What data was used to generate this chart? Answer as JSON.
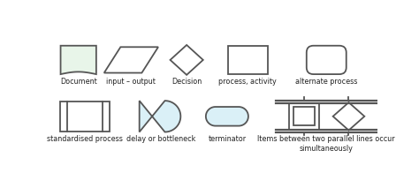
{
  "bg_color": "#ffffff",
  "outline_color": "#555555",
  "doc_fill": "#e8f5e9",
  "light_blue_fill": "#daf0f7",
  "no_fill": "white",
  "labels_row1": [
    "Document",
    "input – output",
    "Decision",
    "process, activity",
    "alternate process"
  ],
  "labels_row2": [
    "standardised process",
    "delay or bottleneck",
    "terminator",
    "Items between two parallel lines occur\nsimultaneously"
  ],
  "label_fontsize": 5.8
}
